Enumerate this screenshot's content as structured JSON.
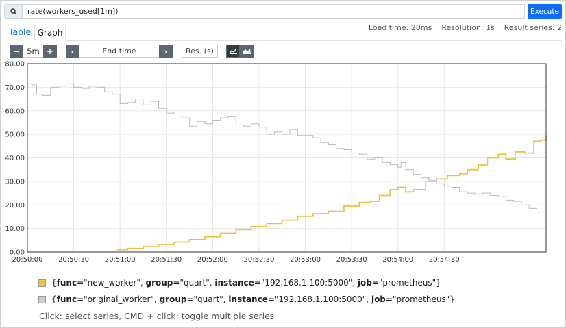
{
  "query": {
    "expression": "rate(workers_used[1m])",
    "execute_label": "Execute"
  },
  "tabs": [
    {
      "label": "Table",
      "active": false
    },
    {
      "label": "Graph",
      "active": true
    }
  ],
  "stats": {
    "load_time": "Load time: 20ms",
    "resolution": "Resolution: 1s",
    "result_series": "Result series: 2"
  },
  "controls": {
    "minus": "−",
    "range": "5m",
    "plus": "+",
    "prev": "‹",
    "end_time_placeholder": "End time",
    "next": "›",
    "resolution_placeholder": "Res. (s)",
    "stack_icon_line": "line-chart-icon",
    "stack_icon_stacked": "stacked-chart-icon"
  },
  "legend": [
    {
      "parts": [
        {
          "t": "{",
          "b": false
        },
        {
          "t": "func",
          "b": true
        },
        {
          "t": "=\"new_worker\", ",
          "b": false
        },
        {
          "t": "group",
          "b": true
        },
        {
          "t": "=\"quart\", ",
          "b": false
        },
        {
          "t": "instance",
          "b": true
        },
        {
          "t": "=\"192.168.1.100:5000\", ",
          "b": false
        },
        {
          "t": "job",
          "b": true
        },
        {
          "t": "=\"prometheus\"}",
          "b": false
        }
      ],
      "color": "#edc240"
    },
    {
      "parts": [
        {
          "t": "{",
          "b": false
        },
        {
          "t": "func",
          "b": true
        },
        {
          "t": "=\"original_worker\", ",
          "b": false
        },
        {
          "t": "group",
          "b": true
        },
        {
          "t": "=\"quart\", ",
          "b": false
        },
        {
          "t": "instance",
          "b": true
        },
        {
          "t": "=\"192.168.1.100:5000\", ",
          "b": false
        },
        {
          "t": "job",
          "b": true
        },
        {
          "t": "=\"prometheus\"}",
          "b": false
        }
      ],
      "color": "#cccccc"
    }
  ],
  "hint": "Click: select series, CMD + click: toggle multiple series",
  "chart_data": {
    "type": "line",
    "y_ticks": [
      "0.00",
      "10.00",
      "20.00",
      "30.00",
      "40.00",
      "50.00",
      "60.00",
      "70.00",
      "80.00"
    ],
    "x_ticks": [
      "20:50:00",
      "20:50:30",
      "20:51:00",
      "20:51:30",
      "20:52:00",
      "20:52:30",
      "20:53:00",
      "20:53:30",
      "20:54:00",
      "20:54:30"
    ],
    "ylim": [
      0,
      80
    ],
    "xlim_seconds_from_first_tick": [
      0,
      336
    ],
    "grid": true,
    "series": [
      {
        "color": "#edc240",
        "points": [
          [
            58,
            1
          ],
          [
            65,
            1.5
          ],
          [
            75,
            2.3
          ],
          [
            85,
            3.2
          ],
          [
            95,
            4.2
          ],
          [
            105,
            5.3
          ],
          [
            115,
            6.5
          ],
          [
            125,
            8.0
          ],
          [
            135,
            9.5
          ],
          [
            145,
            10.8
          ],
          [
            155,
            12.1
          ],
          [
            165,
            13.5
          ],
          [
            175,
            15.2
          ],
          [
            185,
            16.3
          ],
          [
            195,
            17.3
          ],
          [
            205,
            19.5
          ],
          [
            215,
            21.0
          ],
          [
            222,
            21.5
          ],
          [
            228,
            24.0
          ],
          [
            235,
            26.5
          ],
          [
            240,
            27.5
          ],
          [
            245,
            25.5
          ],
          [
            250,
            26.5
          ],
          [
            258,
            30.0
          ],
          [
            265,
            31.0
          ],
          [
            272,
            32.5
          ],
          [
            280,
            33.2
          ],
          [
            285,
            35.0
          ],
          [
            292,
            37.0
          ],
          [
            298,
            40.0
          ],
          [
            305,
            41.5
          ],
          [
            310,
            39.5
          ],
          [
            316,
            42.5
          ],
          [
            322,
            42.0
          ],
          [
            328,
            47.0
          ],
          [
            332,
            47.5
          ],
          [
            336,
            49.5
          ]
        ]
      },
      {
        "color": "#bbbbbb",
        "points": [
          [
            0,
            71.5
          ],
          [
            3,
            71
          ],
          [
            6,
            67
          ],
          [
            10,
            66.5
          ],
          [
            15,
            70
          ],
          [
            20,
            70.5
          ],
          [
            25,
            71.5
          ],
          [
            30,
            70
          ],
          [
            35,
            69.5
          ],
          [
            40,
            70.5
          ],
          [
            45,
            70
          ],
          [
            50,
            68
          ],
          [
            55,
            67
          ],
          [
            60,
            63
          ],
          [
            65,
            63.5
          ],
          [
            70,
            65
          ],
          [
            75,
            62.5
          ],
          [
            80,
            64
          ],
          [
            85,
            61
          ],
          [
            90,
            59
          ],
          [
            95,
            59.5
          ],
          [
            100,
            57
          ],
          [
            105,
            53.5
          ],
          [
            110,
            55.5
          ],
          [
            115,
            54.5
          ],
          [
            120,
            56
          ],
          [
            125,
            57
          ],
          [
            130,
            57.5
          ],
          [
            135,
            54
          ],
          [
            140,
            53.5
          ],
          [
            145,
            54.5
          ],
          [
            150,
            53
          ],
          [
            155,
            50
          ],
          [
            160,
            51
          ],
          [
            165,
            50
          ],
          [
            170,
            52
          ],
          [
            175,
            49.5
          ],
          [
            180,
            49.5
          ],
          [
            185,
            48.5
          ],
          [
            190,
            46.5
          ],
          [
            195,
            45.5
          ],
          [
            200,
            44
          ],
          [
            205,
            43.5
          ],
          [
            210,
            42
          ],
          [
            215,
            41.5
          ],
          [
            220,
            39.5
          ],
          [
            225,
            40
          ],
          [
            230,
            38
          ],
          [
            235,
            37
          ],
          [
            240,
            36
          ],
          [
            242,
            38
          ],
          [
            245,
            35
          ],
          [
            250,
            33
          ],
          [
            255,
            31.5
          ],
          [
            260,
            30.5
          ],
          [
            265,
            29
          ],
          [
            270,
            28
          ],
          [
            275,
            27.5
          ],
          [
            280,
            25.5
          ],
          [
            285,
            25
          ],
          [
            290,
            24.5
          ],
          [
            295,
            25
          ],
          [
            300,
            24
          ],
          [
            305,
            23.5
          ],
          [
            310,
            22
          ],
          [
            315,
            21.5
          ],
          [
            320,
            20
          ],
          [
            325,
            18.5
          ],
          [
            330,
            17
          ],
          [
            336,
            17
          ]
        ]
      }
    ]
  }
}
